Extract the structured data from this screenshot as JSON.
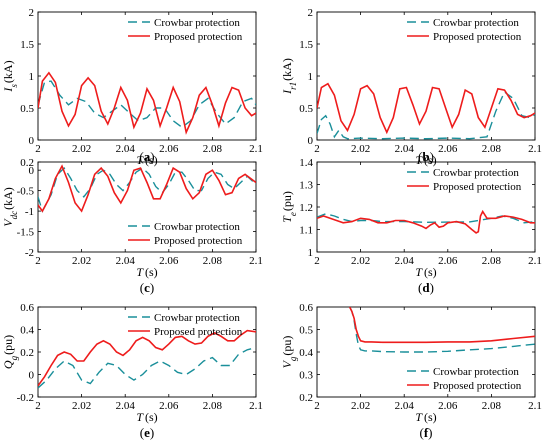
{
  "colors": {
    "crowbar": "#1a8f9a",
    "proposed": "#ee1c1c",
    "axis": "#000000"
  },
  "legend": {
    "crowbar": "Crowbar protection",
    "proposed": "Proposed protection"
  },
  "chart_data": [
    {
      "type": "line",
      "panel": "a",
      "caption_letter": "a",
      "ylabel": "I_s (kA)",
      "ylabel_main": "I",
      "ylabel_sub": "s",
      "ylabel_unit": "(kA)",
      "xlabel_main": "T",
      "xlabel_unit": "(s)",
      "xlim": [
        2,
        2.1
      ],
      "ylim": [
        0,
        2
      ],
      "xticks": [
        "2",
        "2.02",
        "2.04",
        "2.06",
        "2.08",
        "2.1"
      ],
      "yticks": [
        "0",
        "0.5",
        "1",
        "1.5",
        "2"
      ],
      "legend_position": "top-right",
      "series": [
        {
          "name": "Crowbar protection",
          "style": "dashed",
          "x": [
            2.0,
            2.003,
            2.006,
            2.01,
            2.014,
            2.018,
            2.022,
            2.026,
            2.03,
            2.034,
            2.038,
            2.042,
            2.046,
            2.05,
            2.054,
            2.058,
            2.062,
            2.066,
            2.07,
            2.074,
            2.078,
            2.082,
            2.086,
            2.09,
            2.094,
            2.098,
            2.1
          ],
          "y": [
            0.55,
            0.9,
            0.92,
            0.7,
            0.55,
            0.65,
            0.6,
            0.42,
            0.35,
            0.45,
            0.55,
            0.42,
            0.3,
            0.35,
            0.5,
            0.5,
            0.3,
            0.2,
            0.3,
            0.55,
            0.65,
            0.42,
            0.25,
            0.35,
            0.6,
            0.65,
            0.55
          ]
        },
        {
          "name": "Proposed protection",
          "style": "solid",
          "x": [
            2.0,
            2.002,
            2.005,
            2.008,
            2.011,
            2.014,
            2.017,
            2.02,
            2.023,
            2.026,
            2.029,
            2.032,
            2.035,
            2.038,
            2.041,
            2.044,
            2.047,
            2.05,
            2.053,
            2.056,
            2.059,
            2.062,
            2.065,
            2.068,
            2.071,
            2.074,
            2.077,
            2.08,
            2.083,
            2.086,
            2.089,
            2.092,
            2.095,
            2.098,
            2.1
          ],
          "y": [
            0.5,
            0.92,
            1.05,
            0.9,
            0.45,
            0.22,
            0.4,
            0.85,
            0.97,
            0.85,
            0.45,
            0.25,
            0.5,
            0.82,
            0.62,
            0.2,
            0.42,
            0.8,
            0.62,
            0.22,
            0.5,
            0.82,
            0.6,
            0.12,
            0.35,
            0.7,
            0.82,
            0.55,
            0.22,
            0.58,
            0.82,
            0.78,
            0.5,
            0.38,
            0.42
          ]
        }
      ]
    },
    {
      "type": "line",
      "panel": "b",
      "caption_letter": "b",
      "ylabel": "I_r1 (kA)",
      "ylabel_main": "I",
      "ylabel_sub": "r1",
      "ylabel_unit": "(kA)",
      "xlabel_main": "T",
      "xlabel_unit": "(s)",
      "xlim": [
        2,
        2.1
      ],
      "ylim": [
        0,
        2
      ],
      "xticks": [
        "2",
        "2.02",
        "2.04",
        "2.06",
        "2.08",
        "2.1"
      ],
      "yticks": [
        "0",
        "0.5",
        "1",
        "1.5",
        "2"
      ],
      "legend_position": "top-right",
      "series": [
        {
          "name": "Crowbar protection",
          "style": "dashed",
          "x": [
            2.0,
            2.002,
            2.004,
            2.006,
            2.008,
            2.01,
            2.012,
            2.014,
            2.02,
            2.03,
            2.04,
            2.05,
            2.06,
            2.07,
            2.078,
            2.082,
            2.086,
            2.09,
            2.094,
            2.098,
            2.1
          ],
          "y": [
            0.1,
            0.32,
            0.38,
            0.25,
            0.05,
            0.15,
            0.05,
            0.02,
            0.03,
            0.02,
            0.03,
            0.02,
            0.03,
            0.02,
            0.05,
            0.45,
            0.75,
            0.65,
            0.38,
            0.35,
            0.4
          ]
        },
        {
          "name": "Proposed protection",
          "style": "solid",
          "x": [
            2.0,
            2.002,
            2.005,
            2.008,
            2.011,
            2.014,
            2.017,
            2.02,
            2.023,
            2.026,
            2.029,
            2.032,
            2.035,
            2.038,
            2.041,
            2.044,
            2.047,
            2.05,
            2.053,
            2.056,
            2.059,
            2.062,
            2.065,
            2.068,
            2.071,
            2.074,
            2.077,
            2.08,
            2.083,
            2.086,
            2.089,
            2.092,
            2.095,
            2.098,
            2.1
          ],
          "y": [
            0.5,
            0.82,
            0.88,
            0.7,
            0.3,
            0.15,
            0.4,
            0.8,
            0.85,
            0.72,
            0.35,
            0.12,
            0.35,
            0.8,
            0.82,
            0.55,
            0.25,
            0.45,
            0.82,
            0.8,
            0.5,
            0.2,
            0.4,
            0.78,
            0.72,
            0.35,
            0.2,
            0.5,
            0.8,
            0.78,
            0.62,
            0.4,
            0.35,
            0.38,
            0.42
          ]
        }
      ]
    },
    {
      "type": "line",
      "panel": "c",
      "caption_letter": "c",
      "ylabel": "V_dc (kA)",
      "ylabel_main": "V",
      "ylabel_sub": "dc",
      "ylabel_unit": "(kA)",
      "xlabel_main": "T",
      "xlabel_unit": "(s)",
      "xlim": [
        2,
        2.1
      ],
      "ylim": [
        -2,
        0.2
      ],
      "xticks": [
        "2",
        "2.02",
        "2.04",
        "2.06",
        "2.08",
        "2.1"
      ],
      "yticks": [
        "0.2",
        "0",
        "-0.5",
        "-1",
        "-1.5",
        "-2"
      ],
      "legend_position": "bottom-right",
      "series": [
        {
          "name": "Crowbar protection",
          "style": "dashed",
          "x": [
            2.0,
            2.002,
            2.006,
            2.009,
            2.012,
            2.015,
            2.018,
            2.021,
            2.024,
            2.027,
            2.03,
            2.033,
            2.036,
            2.039,
            2.042,
            2.045,
            2.048,
            2.051,
            2.054,
            2.057,
            2.06,
            2.063,
            2.066,
            2.069,
            2.072,
            2.075,
            2.078,
            2.081,
            2.084,
            2.087,
            2.09,
            2.093,
            2.096,
            2.1
          ],
          "y": [
            -0.65,
            -1.0,
            -0.6,
            -0.1,
            0.05,
            -0.2,
            -0.5,
            -0.65,
            -0.45,
            -0.1,
            0.0,
            -0.1,
            -0.35,
            -0.5,
            -0.3,
            -0.05,
            0.05,
            -0.1,
            -0.4,
            -0.55,
            -0.35,
            -0.05,
            -0.05,
            -0.25,
            -0.5,
            -0.5,
            -0.2,
            -0.05,
            -0.1,
            -0.35,
            -0.45,
            -0.3,
            -0.15,
            -0.35
          ]
        },
        {
          "name": "Proposed protection",
          "style": "solid",
          "x": [
            2.0,
            2.002,
            2.005,
            2.008,
            2.011,
            2.014,
            2.017,
            2.02,
            2.023,
            2.026,
            2.029,
            2.032,
            2.035,
            2.038,
            2.041,
            2.044,
            2.047,
            2.05,
            2.053,
            2.056,
            2.059,
            2.062,
            2.065,
            2.068,
            2.071,
            2.074,
            2.077,
            2.08,
            2.083,
            2.086,
            2.089,
            2.092,
            2.095,
            2.1
          ],
          "y": [
            -0.85,
            -1.0,
            -0.7,
            -0.2,
            0.1,
            -0.3,
            -0.8,
            -1.0,
            -0.6,
            -0.1,
            0.05,
            -0.15,
            -0.55,
            -0.8,
            -0.5,
            0.0,
            0.05,
            -0.3,
            -0.7,
            -0.7,
            -0.35,
            0.05,
            -0.05,
            -0.45,
            -0.7,
            -0.55,
            -0.1,
            0.0,
            -0.25,
            -0.6,
            -0.55,
            -0.2,
            -0.1,
            -0.3
          ]
        }
      ]
    },
    {
      "type": "line",
      "panel": "d",
      "caption_letter": "d",
      "ylabel": "T_e (pu)",
      "ylabel_main": "T",
      "ylabel_sub": "e",
      "ylabel_unit": "(pu)",
      "xlabel_main": "T",
      "xlabel_unit": "(s)",
      "xlim": [
        2,
        2.1
      ],
      "ylim": [
        1,
        1.4
      ],
      "xticks": [
        "2",
        "2.02",
        "2.04",
        "2.06",
        "2.08",
        "2.1"
      ],
      "yticks": [
        "1",
        "1.1",
        "1.2",
        "1.3",
        "1.4"
      ],
      "legend_position": "top-right",
      "series": [
        {
          "name": "Crowbar protection",
          "style": "dashed",
          "x": [
            2.0,
            2.004,
            2.008,
            2.012,
            2.016,
            2.02,
            2.025,
            2.03,
            2.04,
            2.05,
            2.06,
            2.07,
            2.08,
            2.085,
            2.09,
            2.095,
            2.1
          ],
          "y": [
            1.155,
            1.17,
            1.16,
            1.145,
            1.135,
            1.14,
            1.14,
            1.135,
            1.135,
            1.132,
            1.133,
            1.134,
            1.15,
            1.16,
            1.15,
            1.13,
            1.135
          ]
        },
        {
          "name": "Proposed protection",
          "style": "solid",
          "x": [
            2.0,
            2.003,
            2.006,
            2.009,
            2.012,
            2.016,
            2.02,
            2.024,
            2.028,
            2.032,
            2.036,
            2.04,
            2.044,
            2.048,
            2.05,
            2.052,
            2.054,
            2.056,
            2.058,
            2.06,
            2.064,
            2.068,
            2.071,
            2.073,
            2.074,
            2.075,
            2.076,
            2.078,
            2.082,
            2.086,
            2.09,
            2.094,
            2.098,
            2.1
          ],
          "y": [
            1.15,
            1.16,
            1.15,
            1.14,
            1.13,
            1.135,
            1.15,
            1.145,
            1.13,
            1.13,
            1.14,
            1.14,
            1.13,
            1.115,
            1.105,
            1.12,
            1.13,
            1.11,
            1.115,
            1.13,
            1.135,
            1.125,
            1.1,
            1.085,
            1.09,
            1.16,
            1.18,
            1.15,
            1.15,
            1.16,
            1.155,
            1.145,
            1.13,
            1.13
          ]
        }
      ]
    },
    {
      "type": "line",
      "panel": "e",
      "caption_letter": "e",
      "ylabel": "Q_g (pu)",
      "ylabel_main": "Q",
      "ylabel_sub": "g",
      "ylabel_unit": "(pu)",
      "xlabel_main": "T",
      "xlabel_unit": "(s)",
      "xlim": [
        2,
        2.1
      ],
      "ylim": [
        -0.2,
        0.6
      ],
      "xticks": [
        "2",
        "2.02",
        "2.04",
        "2.06",
        "2.08",
        "2.1"
      ],
      "yticks": [
        "-0.2",
        "0",
        "0.2",
        "0.4",
        "0.6"
      ],
      "legend_position": "top-right",
      "series": [
        {
          "name": "Crowbar protection",
          "style": "dashed",
          "x": [
            2.0,
            2.004,
            2.008,
            2.012,
            2.016,
            2.02,
            2.024,
            2.028,
            2.032,
            2.036,
            2.04,
            2.044,
            2.048,
            2.052,
            2.056,
            2.06,
            2.064,
            2.068,
            2.072,
            2.076,
            2.08,
            2.084,
            2.088,
            2.092,
            2.096,
            2.1
          ],
          "y": [
            -0.12,
            -0.05,
            0.05,
            0.12,
            0.08,
            -0.05,
            -0.08,
            0.02,
            0.1,
            0.08,
            0.0,
            -0.05,
            0.0,
            0.08,
            0.12,
            0.08,
            0.02,
            0.0,
            0.05,
            0.12,
            0.15,
            0.08,
            0.08,
            0.18,
            0.22,
            0.24
          ]
        },
        {
          "name": "Proposed protection",
          "style": "solid",
          "x": [
            2.0,
            2.003,
            2.006,
            2.009,
            2.012,
            2.015,
            2.018,
            2.021,
            2.024,
            2.027,
            2.03,
            2.033,
            2.036,
            2.039,
            2.042,
            2.045,
            2.048,
            2.051,
            2.054,
            2.057,
            2.06,
            2.063,
            2.066,
            2.069,
            2.072,
            2.075,
            2.078,
            2.081,
            2.084,
            2.087,
            2.09,
            2.093,
            2.096,
            2.1
          ],
          "y": [
            -0.1,
            -0.02,
            0.08,
            0.17,
            0.2,
            0.18,
            0.12,
            0.12,
            0.2,
            0.27,
            0.3,
            0.27,
            0.2,
            0.17,
            0.22,
            0.3,
            0.33,
            0.3,
            0.24,
            0.22,
            0.27,
            0.33,
            0.34,
            0.3,
            0.27,
            0.28,
            0.34,
            0.37,
            0.34,
            0.3,
            0.3,
            0.35,
            0.39,
            0.38
          ]
        }
      ]
    },
    {
      "type": "line",
      "panel": "f",
      "caption_letter": "f",
      "ylabel": "V_g (pu)",
      "ylabel_main": "V",
      "ylabel_sub": "g",
      "ylabel_unit": "(pu)",
      "xlabel_main": "T",
      "xlabel_unit": "(s)",
      "xlim": [
        2,
        2.1
      ],
      "ylim": [
        0.2,
        0.6
      ],
      "xticks": [
        "2",
        "2.02",
        "2.04",
        "2.06",
        "2.08",
        "2.1"
      ],
      "yticks": [
        "0.2",
        "0.3",
        "0.4",
        "0.5",
        "0.6"
      ],
      "legend_position": "bottom-right",
      "series": [
        {
          "name": "Crowbar protection",
          "style": "dashed",
          "x": [
            2.015,
            2.016,
            2.017,
            2.018,
            2.019,
            2.02,
            2.022,
            2.025,
            2.03,
            2.04,
            2.05,
            2.06,
            2.07,
            2.08,
            2.09,
            2.1
          ],
          "y": [
            0.6,
            0.58,
            0.54,
            0.48,
            0.43,
            0.41,
            0.405,
            0.405,
            0.402,
            0.4,
            0.4,
            0.403,
            0.41,
            0.415,
            0.425,
            0.435
          ]
        },
        {
          "name": "Proposed protection",
          "style": "solid",
          "x": [
            2.015,
            2.016,
            2.017,
            2.018,
            2.019,
            2.02,
            2.022,
            2.025,
            2.03,
            2.04,
            2.05,
            2.06,
            2.07,
            2.08,
            2.09,
            2.1
          ],
          "y": [
            0.6,
            0.58,
            0.55,
            0.5,
            0.47,
            0.45,
            0.445,
            0.445,
            0.443,
            0.443,
            0.443,
            0.445,
            0.445,
            0.45,
            0.46,
            0.47
          ]
        }
      ]
    }
  ]
}
